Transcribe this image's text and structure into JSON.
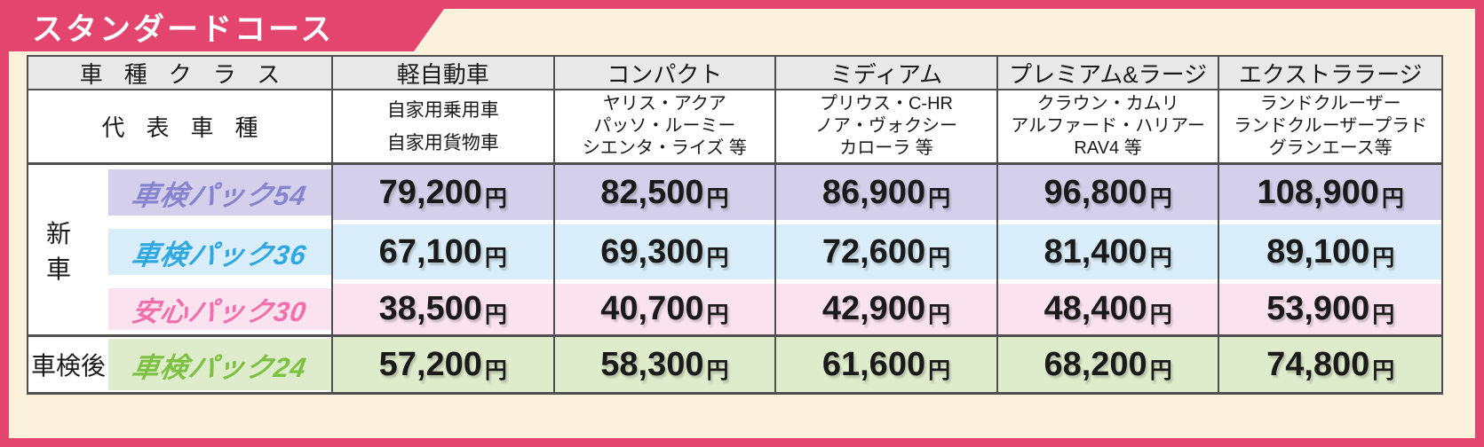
{
  "banner": {
    "title": "スタンダードコース"
  },
  "header": {
    "class_label": "車種クラス",
    "representative_label": "代表車種"
  },
  "columns": [
    {
      "name": "軽自動車",
      "models": [
        "自家用乗用車",
        "自家用貨物車"
      ]
    },
    {
      "name": "コンパクト",
      "models": [
        "ヤリス・アクア",
        "パッソ・ルーミー",
        "シエンタ・ライズ 等"
      ]
    },
    {
      "name": "ミディアム",
      "models": [
        "プリウス・C-HR",
        "ノア・ヴォクシー",
        "カローラ 等"
      ]
    },
    {
      "name": "プレミアム&ラージ",
      "models": [
        "クラウン・カムリ",
        "アルファード・ハリアー",
        "RAV4 等"
      ]
    },
    {
      "name": "エクストララージ",
      "models": [
        "ランドクルーザー",
        "ランドクルーザープラド",
        "グランエース等"
      ]
    }
  ],
  "row_groups": [
    {
      "label": "新車",
      "row_indices": [
        0,
        1,
        2
      ]
    },
    {
      "label": "車検後",
      "row_indices": [
        3
      ]
    }
  ],
  "packs": [
    {
      "name": "車検パック54",
      "text_color": "#8784CF",
      "bg_color": "#D4CFEA",
      "prices": [
        "79,200",
        "82,500",
        "86,900",
        "96,800",
        "108,900"
      ]
    },
    {
      "name": "車検パック36",
      "text_color": "#2FA8E1",
      "bg_color": "#D9EEFA",
      "prices": [
        "67,100",
        "69,300",
        "72,600",
        "81,400",
        "89,100"
      ]
    },
    {
      "name": "安心パック30",
      "text_color": "#F170AC",
      "bg_color": "#FBE2EF",
      "prices": [
        "38,500",
        "40,700",
        "42,900",
        "48,400",
        "53,900"
      ]
    },
    {
      "name": "車検パック24",
      "text_color": "#7CC142",
      "bg_color": "#DFECCB",
      "prices": [
        "57,200",
        "58,300",
        "61,600",
        "68,200",
        "74,800"
      ]
    }
  ],
  "unit": "円",
  "colors": {
    "frame": "#E4456E",
    "background": "#FCF1DC",
    "header_bg": "#E9E9E9",
    "line": "#4F4F4F",
    "banner_text": "#FFFFFF"
  }
}
